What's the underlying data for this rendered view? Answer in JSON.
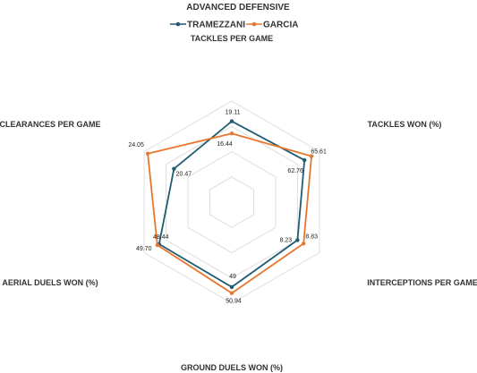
{
  "chart_data": {
    "type": "radar",
    "title": "ADVANCED DEFENSIVE",
    "legend_position": "top",
    "axes": [
      "TACKLES PER GAME",
      "TACKLES WON (%)",
      "INTERCEPTIONS PER GAME",
      "GROUND DUELS WON (%)",
      "AERIAL DUELS WON (%)",
      "CLEARANCES PER GAME"
    ],
    "grid_rings": 4,
    "series": [
      {
        "name": "TRAMEZZANI",
        "color": "#1f5c73",
        "values": [
          19.11,
          62.76,
          8.23,
          49,
          48.44,
          20.47
        ],
        "labels": [
          "19.11",
          "62.76",
          "8.23",
          "49",
          "48.44",
          "20.47"
        ],
        "levels": [
          0.8,
          0.83,
          0.75,
          0.84,
          0.83,
          0.66
        ]
      },
      {
        "name": "GARCIA",
        "color": "#e8772e",
        "values": [
          16.44,
          65.61,
          8.83,
          50.94,
          49.7,
          24.05
        ],
        "labels": [
          "16.44",
          "65.61",
          "8.83",
          "50.94",
          "49.70",
          "24.05"
        ],
        "levels": [
          0.68,
          0.91,
          0.82,
          0.9,
          0.85,
          0.96
        ]
      }
    ]
  }
}
